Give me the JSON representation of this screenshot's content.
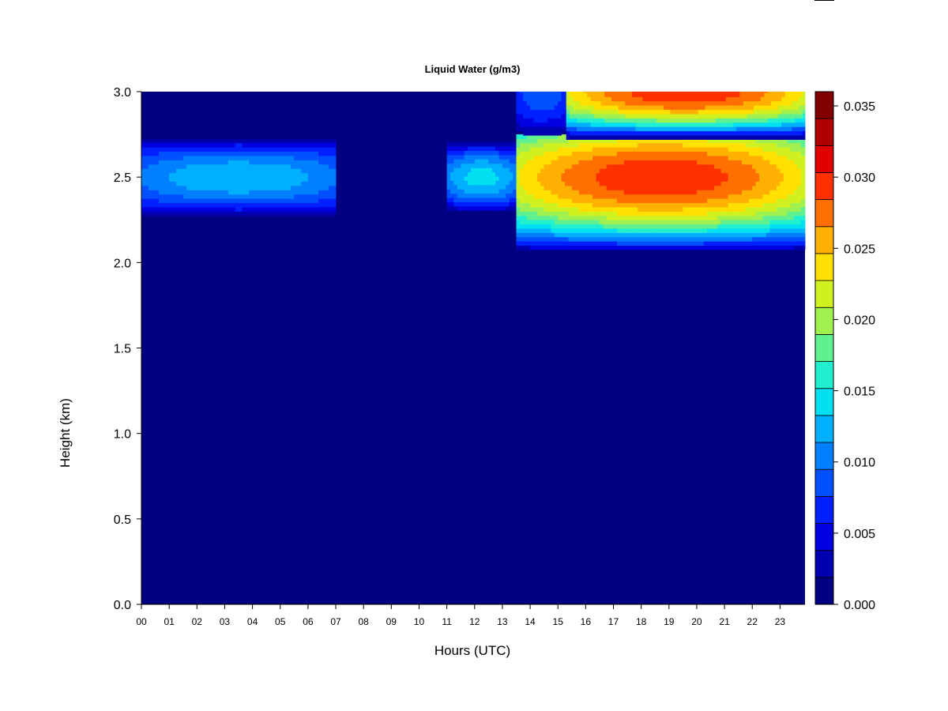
{
  "chart_data": {
    "type": "heatmap",
    "title": "Liquid Water (g/m3)",
    "xlabel": "Hours (UTC)",
    "ylabel": "Height (km)",
    "xlim": [
      0,
      23.9
    ],
    "ylim": [
      0,
      3.0
    ],
    "x_ticks": [
      "00",
      "01",
      "02",
      "03",
      "04",
      "05",
      "06",
      "07",
      "08",
      "09",
      "10",
      "11",
      "12",
      "13",
      "14",
      "15",
      "16",
      "17",
      "18",
      "19",
      "20",
      "21",
      "22",
      "23"
    ],
    "y_ticks": [
      "0.0",
      "0.5",
      "1.0",
      "1.5",
      "2.0",
      "2.5",
      "3.0"
    ],
    "colorbar": {
      "range": [
        0,
        0.036
      ],
      "ticks": [
        "0.000",
        "0.005",
        "0.010",
        "0.015",
        "0.020",
        "0.025",
        "0.030",
        "0.035"
      ],
      "levels": [
        "#000080",
        "#0000B0",
        "#0000E0",
        "#0020FF",
        "#0050FF",
        "#0080FF",
        "#00B0FF",
        "#00E0F0",
        "#20F0D0",
        "#60F090",
        "#A0F050",
        "#D0F020",
        "#FFE000",
        "#FFB000",
        "#FF7000",
        "#FF3000",
        "#E00000",
        "#B00000",
        "#800000"
      ]
    },
    "cloud_layers": [
      {
        "hours": [
          0,
          7.0
        ],
        "height_km": [
          2.25,
          2.72
        ],
        "peak_km": 2.5,
        "peak_gm3": 0.013
      },
      {
        "hours": [
          11.0,
          13.5
        ],
        "height_km": [
          2.28,
          2.72
        ],
        "peak_km": 2.5,
        "peak_gm3": 0.014
      },
      {
        "hours": [
          13.5,
          23.9
        ],
        "height_km": [
          2.05,
          2.75
        ],
        "peak_km": 2.5,
        "peak_gm3": 0.03
      },
      {
        "hours": [
          13.5,
          15.3
        ],
        "height_km": [
          2.72,
          3.0
        ],
        "peak_km": 3.0,
        "peak_gm3": 0.009
      },
      {
        "hours": [
          15.3,
          23.9
        ],
        "height_km": [
          2.72,
          3.0
        ],
        "peak_km": 3.0,
        "peak_gm3": 0.03
      }
    ]
  }
}
